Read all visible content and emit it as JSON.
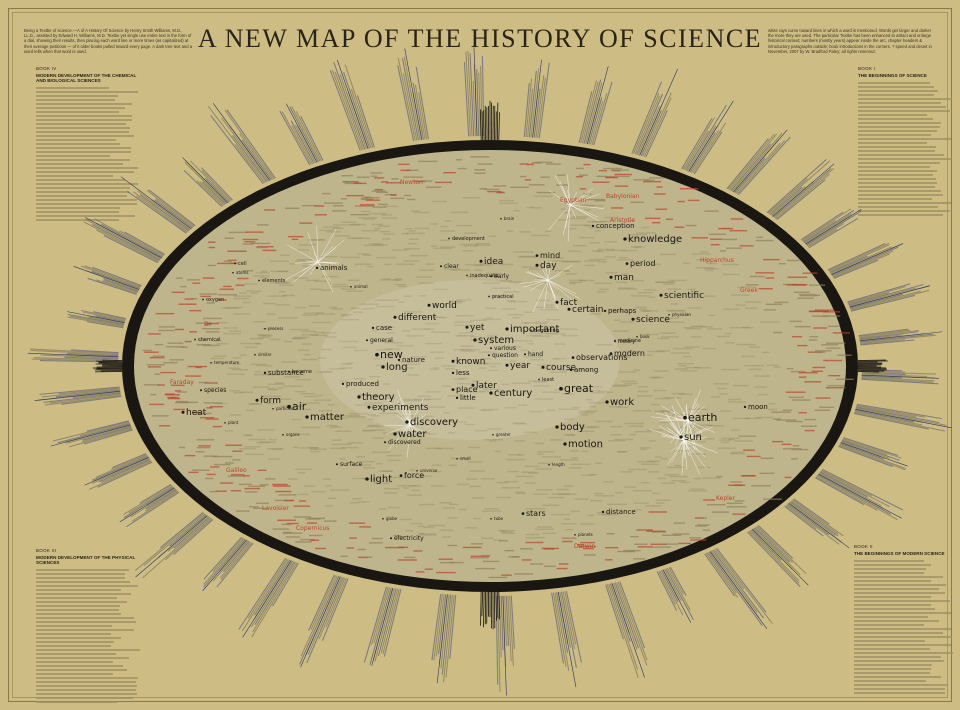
{
  "title": "A NEW MAP OF THE HISTORY OF SCIENCE",
  "intro_left": "Being a Textbe of science.—A of A History Of Science by Henry Smith Williams, M.D., LL.D., assisted by Edward H. Williams, M.D. Textbe yet single use entire text in the form of a dial, showing their results, then placing each word line or more times (as capitalized) at their average positions — of it older books pulled toward every page. A dark tree text and a word tells when that word is used.",
  "intro_right": "white rays curve toward lines in which a word is mentioned. Words get larger and darker the more they are used. The particular Textbe has been enhanced to attract and enlarge historical context; numbers (mostly years) appear inside the arc, chapter headers & introductory paragraphs outside; book introductions in the corners. ? speed and deceit in November, 2007 by W. Bradford Paley; all rights reserved.",
  "books": [
    {
      "id": "book-4",
      "number": "BOOK IV",
      "title": "MODERN DEVELOPMENT OF THE CHEMICAL AND BIOLOGICAL SCIENCES"
    },
    {
      "id": "book-1",
      "number": "BOOK I",
      "title": "THE BEGINNINGS OF SCIENCE"
    },
    {
      "id": "book-3",
      "number": "BOOK III",
      "title": "MODERN DEVELOPMENT OF THE PHYSICAL SCIENCES"
    },
    {
      "id": "book-2",
      "number": "BOOK II",
      "title": "THE BEGINNINGS OF MODERN SCIENCE"
    }
  ],
  "words": [
    {
      "t": "knowledge",
      "s": 10
    },
    {
      "t": "conception",
      "s": 7
    },
    {
      "t": "idea",
      "s": 9
    },
    {
      "t": "mind",
      "s": 8
    },
    {
      "t": "day",
      "s": 9
    },
    {
      "t": "period",
      "s": 8
    },
    {
      "t": "man",
      "s": 9
    },
    {
      "t": "fact",
      "s": 9
    },
    {
      "t": "certain",
      "s": 9
    },
    {
      "t": "scientific",
      "s": 9
    },
    {
      "t": "perhaps",
      "s": 7
    },
    {
      "t": "science",
      "s": 9
    },
    {
      "t": "medicine",
      "s": 5
    },
    {
      "t": "world",
      "s": 9
    },
    {
      "t": "different",
      "s": 9
    },
    {
      "t": "yet",
      "s": 9
    },
    {
      "t": "important",
      "s": 10
    },
    {
      "t": "system",
      "s": 10
    },
    {
      "t": "year",
      "s": 9
    },
    {
      "t": "course",
      "s": 9
    },
    {
      "t": "hand",
      "s": 6
    },
    {
      "t": "observations",
      "s": 8
    },
    {
      "t": "modern",
      "s": 8
    },
    {
      "t": "history",
      "s": 5
    },
    {
      "t": "new",
      "s": 11
    },
    {
      "t": "long",
      "s": 10
    },
    {
      "t": "nature",
      "s": 7
    },
    {
      "t": "known",
      "s": 9
    },
    {
      "t": "less",
      "s": 7
    },
    {
      "t": "among",
      "s": 7
    },
    {
      "t": "later",
      "s": 9
    },
    {
      "t": "century",
      "s": 10
    },
    {
      "t": "great",
      "s": 11
    },
    {
      "t": "work",
      "s": 10
    },
    {
      "t": "theory",
      "s": 10
    },
    {
      "t": "experiments",
      "s": 9
    },
    {
      "t": "little",
      "s": 7
    },
    {
      "t": "place",
      "s": 8
    },
    {
      "t": "form",
      "s": 9
    },
    {
      "t": "heat",
      "s": 9
    },
    {
      "t": "air",
      "s": 11
    },
    {
      "t": "matter",
      "s": 10
    },
    {
      "t": "discovery",
      "s": 10
    },
    {
      "t": "water",
      "s": 10
    },
    {
      "t": "body",
      "s": 10
    },
    {
      "t": "motion",
      "s": 10
    },
    {
      "t": "earth",
      "s": 11
    },
    {
      "t": "sun",
      "s": 10
    },
    {
      "t": "moon",
      "s": 7
    },
    {
      "t": "light",
      "s": 10
    },
    {
      "t": "force",
      "s": 8
    },
    {
      "t": "stars",
      "s": 8
    },
    {
      "t": "distance",
      "s": 7
    },
    {
      "t": "electricity",
      "s": 6
    },
    {
      "t": "substance",
      "s": 7
    },
    {
      "t": "animals",
      "s": 7
    },
    {
      "t": "oxygen",
      "s": 5
    },
    {
      "t": "chemical",
      "s": 5
    },
    {
      "t": "species",
      "s": 6
    },
    {
      "t": "case",
      "s": 7
    },
    {
      "t": "general",
      "s": 6
    },
    {
      "t": "produced",
      "s": 7
    },
    {
      "t": "discovered",
      "s": 6
    },
    {
      "t": "surface",
      "s": 6
    },
    {
      "t": "planets",
      "s": 4
    },
    {
      "t": "globe",
      "s": 4
    },
    {
      "t": "tube",
      "s": 4
    },
    {
      "t": "length",
      "s": 4
    },
    {
      "t": "greater",
      "s": 4
    },
    {
      "t": "clear",
      "s": 6
    },
    {
      "t": "inadequate",
      "s": 5
    },
    {
      "t": "early",
      "s": 6
    },
    {
      "t": "practical",
      "s": 5
    },
    {
      "t": "development",
      "s": 5
    },
    {
      "t": "cell",
      "s": 5
    },
    {
      "t": "elements",
      "s": 5
    },
    {
      "t": "atoms",
      "s": 4
    },
    {
      "t": "animal",
      "s": 4
    },
    {
      "t": "similar",
      "s": 4
    },
    {
      "t": "process",
      "s": 4
    },
    {
      "t": "temperature",
      "s": 4
    },
    {
      "t": "various",
      "s": 6
    },
    {
      "t": "question",
      "s": 6
    },
    {
      "t": "least",
      "s": 5
    },
    {
      "t": "beginning",
      "s": 5
    },
    {
      "t": "book",
      "s": 4
    },
    {
      "t": "physician",
      "s": 4
    },
    {
      "t": "brain",
      "s": 4
    },
    {
      "t": "small",
      "s": 4
    },
    {
      "t": "become",
      "s": 5
    },
    {
      "t": "particles",
      "s": 4
    },
    {
      "t": "plant",
      "s": 4
    },
    {
      "t": "organs",
      "s": 4
    },
    {
      "t": "universe",
      "s": 4
    }
  ],
  "red_words": [
    {
      "t": "Egyptian"
    },
    {
      "t": "Babylonian"
    },
    {
      "t": "Aristotle"
    },
    {
      "t": "Greek"
    },
    {
      "t": "Hipparchus"
    },
    {
      "t": "Newton"
    },
    {
      "t": "Dr"
    },
    {
      "t": "Galileo"
    },
    {
      "t": "Lavoisier"
    },
    {
      "t": "Darwin"
    },
    {
      "t": "Kepler"
    },
    {
      "t": "Faraday"
    },
    {
      "t": "Copernicus"
    }
  ],
  "colors": {
    "background": "#cdbd85",
    "ring": "#1a1712",
    "inner": "#bfb58c",
    "red": "#b8452c",
    "blue": "#2b3a6a"
  }
}
